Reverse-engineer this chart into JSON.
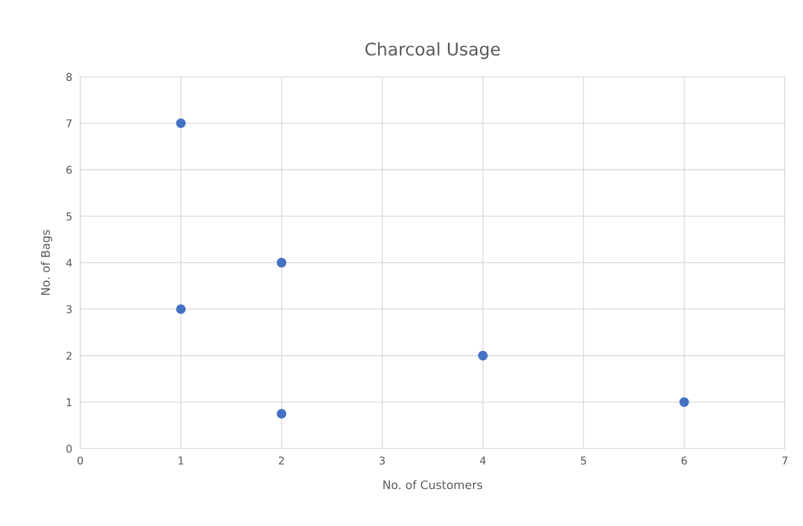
{
  "chart_data": {
    "type": "scatter",
    "title": "Charcoal Usage",
    "xlabel": "No. of Customers",
    "ylabel": "No. of Bags",
    "x": [
      1,
      1,
      2,
      2,
      4,
      6
    ],
    "series": [
      {
        "color": "#4472c4",
        "values": [
          7,
          3,
          4,
          0.75,
          2,
          1
        ]
      }
    ],
    "xlim": [
      0,
      7
    ],
    "xticks": [
      0,
      1,
      2,
      3,
      4,
      5,
      6,
      7
    ],
    "ylim": [
      0,
      8
    ],
    "yticks": [
      0,
      1,
      2,
      3,
      4,
      5,
      6,
      7,
      8
    ],
    "grid": true,
    "marker": "circle"
  }
}
